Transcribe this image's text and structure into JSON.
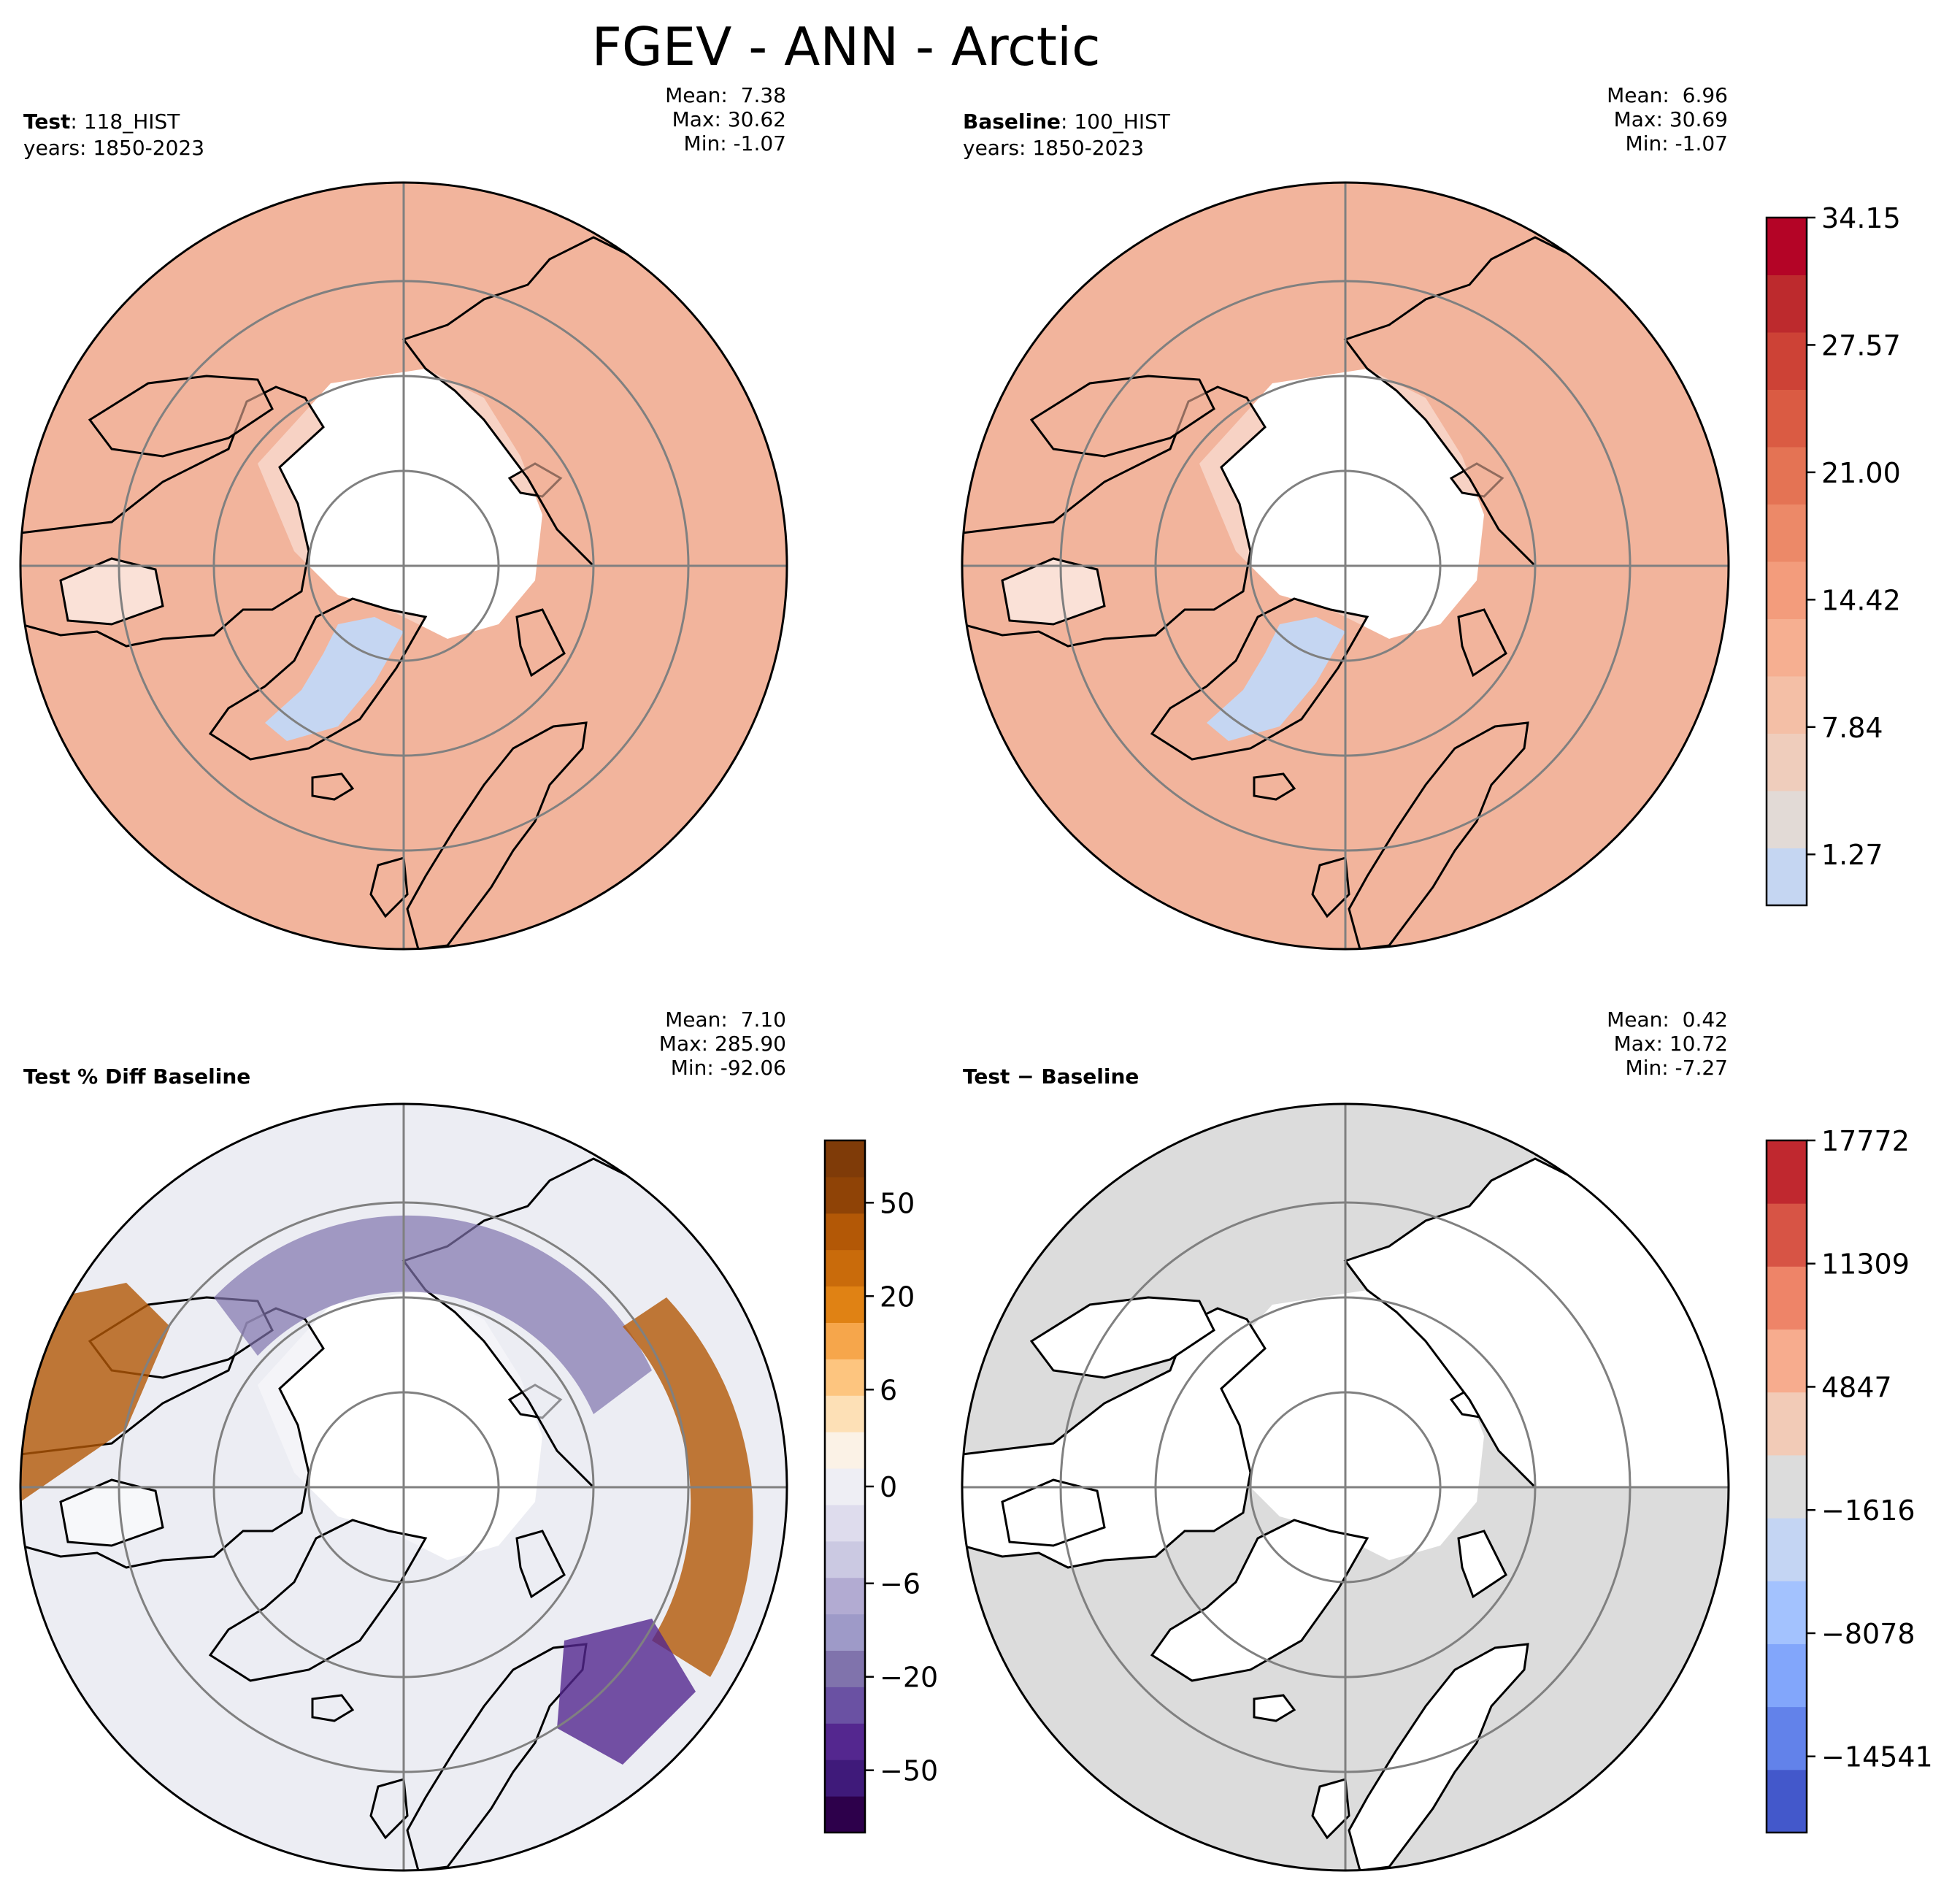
{
  "figure": {
    "title": "FGEV - ANN - Arctic"
  },
  "chart_data": [
    {
      "type": "heatmap",
      "projection": "north-polar-stereographic",
      "label_bold": "Test",
      "label_rest": ": 118_HIST",
      "years": "years: 1850-2023",
      "stats": {
        "mean": "Mean:  7.38",
        "max": "Max: 30.62",
        "min": "Min: -1.07"
      },
      "colorbar_ticks": [],
      "field_color": "#f2b49c"
    },
    {
      "type": "heatmap",
      "projection": "north-polar-stereographic",
      "label_bold": "Baseline",
      "label_rest": ": 100_HIST",
      "years": "years: 1850-2023",
      "stats": {
        "mean": "Mean:  6.96",
        "max": "Max: 30.69",
        "min": "Min: -1.07"
      },
      "colorbar_ticks": [
        "34.15",
        "27.57",
        "21.00",
        "14.42",
        "7.84",
        "1.27"
      ],
      "colorbar_colors": [
        "#c5d6f2",
        "#e2dad6",
        "#efcdbc",
        "#f4bfa6",
        "#f6af91",
        "#f39c7c",
        "#ec8968",
        "#e47354",
        "#da5b43",
        "#cd4236",
        "#bd2a2d",
        "#b40426"
      ],
      "field_color": "#f2b49c"
    },
    {
      "type": "heatmap",
      "projection": "north-polar-stereographic",
      "label_bold": "Test % Diff Baseline",
      "stats": {
        "mean": "Mean:  7.10",
        "max": "Max: 285.90",
        "min": "Min: -92.06"
      },
      "colorbar_ticks": [
        "50",
        "20",
        "6",
        "0",
        "−6",
        "−20",
        "−50"
      ],
      "colorbar_colors": [
        "#2d004b",
        "#3f1a7a",
        "#54278f",
        "#6a51a3",
        "#8073ac",
        "#9e9ac8",
        "#b2abd2",
        "#cbc9e2",
        "#dedced",
        "#eeeef4",
        "#fbf2e6",
        "#fde0b6",
        "#fdc57f",
        "#f6a64b",
        "#e08214",
        "#c96b0b",
        "#b35806",
        "#8f4306",
        "#7f3b08"
      ],
      "field_color": "#ecedf3"
    },
    {
      "type": "heatmap",
      "projection": "north-polar-stereographic",
      "label_bold": "Test",
      "label_rest": " − Baseline",
      "stats": {
        "mean": "Mean:  0.42",
        "max": "Max: 10.72",
        "min": "Min: -7.27"
      },
      "colorbar_ticks": [
        "17772",
        "11309",
        "4847",
        "−1616",
        "−8078",
        "−14541"
      ],
      "colorbar_colors": [
        "#4358cb",
        "#6282ea",
        "#82a6fb",
        "#a3c2fe",
        "#c4d5f3",
        "#dcdcdc",
        "#f2cbb7",
        "#f7ac8e",
        "#ee8468",
        "#d75445",
        "#c0282f"
      ],
      "field_color": "#dcdcdc"
    }
  ]
}
